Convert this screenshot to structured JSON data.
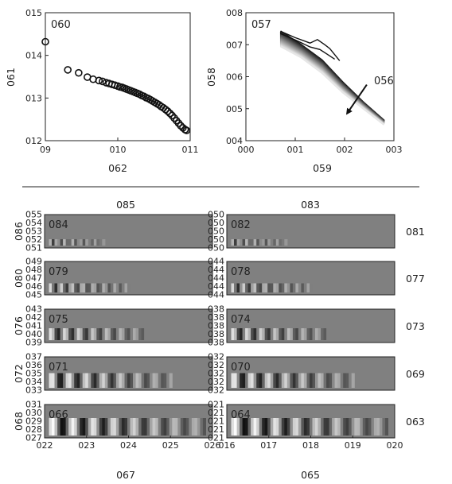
{
  "colors": {
    "axis": "#222222",
    "panel_gray": "#808080",
    "background": "#ffffff"
  },
  "chart_data": [
    {
      "type": "scatter",
      "panel_label": "060",
      "xlabel": "062",
      "ylabel": "061",
      "x_ticks": [
        "09",
        "010",
        "011"
      ],
      "y_ticks": [
        "012",
        "013",
        "014",
        "015"
      ],
      "xlim": [
        0.9,
        1.1
      ],
      "ylim": [
        1.2,
        1.5
      ],
      "marker": "open-circle",
      "points": [
        [
          0.9,
          1.432
        ],
        [
          0.931,
          1.366
        ],
        [
          0.946,
          1.359
        ],
        [
          0.958,
          1.349
        ],
        [
          0.966,
          1.344
        ],
        [
          0.974,
          1.341
        ],
        [
          0.979,
          1.339
        ],
        [
          0.984,
          1.336
        ],
        [
          0.988,
          1.334
        ],
        [
          0.992,
          1.332
        ],
        [
          0.996,
          1.33
        ],
        [
          1.0,
          1.328
        ],
        [
          1.003,
          1.326
        ],
        [
          1.006,
          1.325
        ],
        [
          1.009,
          1.323
        ],
        [
          1.012,
          1.321
        ],
        [
          1.015,
          1.319
        ],
        [
          1.018,
          1.317
        ],
        [
          1.021,
          1.315
        ],
        [
          1.024,
          1.313
        ],
        [
          1.027,
          1.311
        ],
        [
          1.03,
          1.309
        ],
        [
          1.033,
          1.306
        ],
        [
          1.036,
          1.304
        ],
        [
          1.039,
          1.301
        ],
        [
          1.042,
          1.299
        ],
        [
          1.045,
          1.296
        ],
        [
          1.048,
          1.293
        ],
        [
          1.051,
          1.29
        ],
        [
          1.054,
          1.287
        ],
        [
          1.057,
          1.284
        ],
        [
          1.06,
          1.28
        ],
        [
          1.063,
          1.277
        ],
        [
          1.066,
          1.273
        ],
        [
          1.069,
          1.269
        ],
        [
          1.072,
          1.264
        ],
        [
          1.075,
          1.259
        ],
        [
          1.078,
          1.253
        ],
        [
          1.081,
          1.247
        ],
        [
          1.084,
          1.241
        ],
        [
          1.087,
          1.235
        ],
        [
          1.09,
          1.23
        ],
        [
          1.093,
          1.226
        ],
        [
          1.095,
          1.224
        ]
      ]
    },
    {
      "type": "line",
      "panel_label": "057",
      "annotation": "056",
      "xlabel": "059",
      "ylabel": "058",
      "x_ticks": [
        "000",
        "001",
        "002",
        "003"
      ],
      "y_ticks": [
        "004",
        "005",
        "006",
        "007",
        "008"
      ],
      "xlim": [
        0.0,
        0.3
      ],
      "ylim": [
        0.4,
        0.8
      ],
      "series_count": 40,
      "series_band": {
        "x_start": 0.07,
        "x_end": 0.28,
        "first_curve_y": [
          0.742,
          0.7,
          0.652,
          0.583,
          0.52,
          0.463
        ],
        "last_curve_y": [
          0.695,
          0.66,
          0.612,
          0.551,
          0.5,
          0.45
        ]
      },
      "jagged_curves": [
        {
          "x": [
            0.07,
            0.1,
            0.13,
            0.145,
            0.16,
            0.17,
            0.19
          ],
          "y": [
            0.742,
            0.722,
            0.705,
            0.716,
            0.7,
            0.688,
            0.65
          ]
        },
        {
          "x": [
            0.07,
            0.1,
            0.13,
            0.15,
            0.165,
            0.18
          ],
          "y": [
            0.735,
            0.715,
            0.693,
            0.685,
            0.67,
            0.655
          ]
        }
      ],
      "arrow": {
        "from": [
          0.245,
          0.575
        ],
        "to": [
          0.205,
          0.485
        ]
      }
    },
    {
      "type": "heatmap",
      "columns": [
        {
          "title": "085",
          "xlabel": "067",
          "x_ticks": [
            "022",
            "023",
            "024",
            "025",
            "026"
          ],
          "rows": [
            {
              "panel_label": "084",
              "ylabel": "086",
              "y_ticks": [
                "051",
                "052",
                "053",
                "054",
                "055"
              ],
              "right_label": ""
            },
            {
              "panel_label": "079",
              "ylabel": "080",
              "y_ticks": [
                "045",
                "046",
                "047",
                "048",
                "049"
              ],
              "right_label": ""
            },
            {
              "panel_label": "075",
              "ylabel": "076",
              "y_ticks": [
                "039",
                "040",
                "041",
                "042",
                "043"
              ],
              "right_label": ""
            },
            {
              "panel_label": "071",
              "ylabel": "072",
              "y_ticks": [
                "033",
                "034",
                "035",
                "036",
                "037"
              ],
              "right_label": ""
            },
            {
              "panel_label": "066",
              "ylabel": "068",
              "y_ticks": [
                "027",
                "028",
                "029",
                "030",
                "031"
              ],
              "right_label": ""
            }
          ]
        },
        {
          "title": "083",
          "xlabel": "065",
          "x_ticks": [
            "016",
            "017",
            "018",
            "019",
            "020"
          ],
          "rows": [
            {
              "panel_label": "082",
              "ylabel": "",
              "y_ticks": [
                "050",
                "050",
                "050",
                "050",
                "050"
              ],
              "right_label": "081"
            },
            {
              "panel_label": "078",
              "ylabel": "",
              "y_ticks": [
                "044",
                "044",
                "044",
                "044",
                "044"
              ],
              "right_label": "077"
            },
            {
              "panel_label": "074",
              "ylabel": "",
              "y_ticks": [
                "038",
                "038",
                "038",
                "038",
                "038"
              ],
              "right_label": "073"
            },
            {
              "panel_label": "070",
              "ylabel": "",
              "y_ticks": [
                "032",
                "032",
                "032",
                "032",
                "032"
              ],
              "right_label": "069"
            },
            {
              "panel_label": "064",
              "ylabel": "",
              "y_ticks": [
                "021",
                "021",
                "021",
                "021",
                "021"
              ],
              "right_label": "063"
            }
          ]
        }
      ]
    }
  ]
}
